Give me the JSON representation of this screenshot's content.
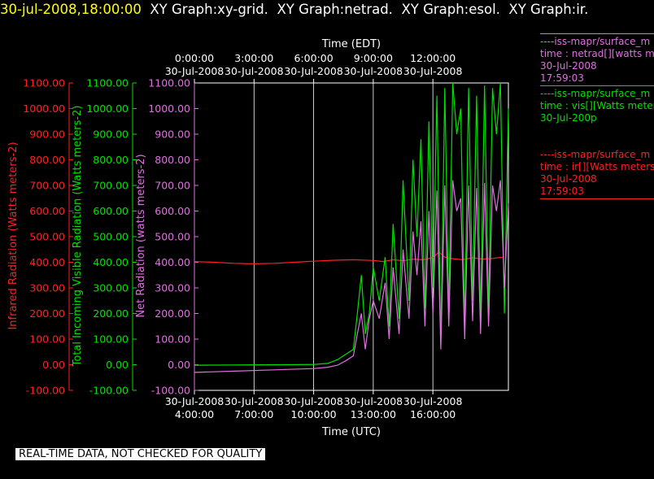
{
  "title": {
    "timestamp": "30-jul-2008,18:00:00",
    "graphs": [
      "XY Graph:xy-grid.",
      "XY Graph:netrad.",
      "XY Graph:esol.",
      "XY Graph:ir."
    ]
  },
  "colors": {
    "infrared": "#ff2020",
    "visible": "#00e000",
    "net": "#e070e0",
    "grid": "#ffffff"
  },
  "footer": "REAL-TIME DATA, NOT CHECKED FOR QUALITY",
  "legend": [
    {
      "header": "----iss-mapr/surface_m",
      "line1": "time : netrad[][watts m",
      "line2": "30-Jul-2008",
      "line3": "17:59:03",
      "color": "#e070e0"
    },
    {
      "header": "----iss-mapr/surface_m",
      "line1": "time : vis[][Watts meter",
      "line2": "30-Jul-200p",
      "line3": "",
      "color": "#00e000"
    },
    {
      "header": "----iss-mapr/surface_m",
      "line1": "time : ir[][Watts meters",
      "line2": "30-Jul-2008",
      "line3": "17:59:03",
      "color": "#ff2020"
    }
  ],
  "chart_data": {
    "type": "line",
    "x_unit": "hours UTC on 30-Jul-2008",
    "xlim": [
      4.0,
      19.8
    ],
    "ylim": [
      -100,
      1100
    ],
    "x_bottom": {
      "label": "Time (UTC)",
      "ticks": [
        4,
        7,
        10,
        13,
        16
      ],
      "tick_dates": [
        "30-Jul-2008",
        "30-Jul-2008",
        "30-Jul-2008",
        "30-Jul-2008",
        "30-Jul-2008"
      ],
      "tick_times": [
        "4:00:00",
        "7:00:00",
        "10:00:00",
        "13:00:00",
        "16:00:00"
      ]
    },
    "x_top": {
      "label": "Time (EDT)",
      "ticks": [
        4,
        7,
        10,
        13,
        16
      ],
      "tick_times": [
        "0:00:00",
        "3:00:00",
        "6:00:00",
        "9:00:00",
        "12:00:00"
      ],
      "tick_dates": [
        "30-Jul-2008",
        "30-Jul-2008",
        "30-Jul-2008",
        "30-Jul-2008",
        "30-Jul-2008"
      ]
    },
    "y_axes": [
      {
        "label": "Infrared Radiation (Watts meters-2)",
        "color": "#ff2020",
        "ticks": [
          "-100.00",
          "0.00",
          "100.00",
          "200.00",
          "300.00",
          "400.00",
          "500.00",
          "600.00",
          "700.00",
          "800.00",
          "900.00",
          "1000.00",
          "1100.00"
        ]
      },
      {
        "label": "Total Incoming Visible Radiation (Watts meters-2)",
        "color": "#00e000",
        "ticks": [
          "-100.00",
          "0.00",
          "100.00",
          "200.00",
          "300.00",
          "400.00",
          "500.00",
          "600.00",
          "700.00",
          "800.00",
          "900.00",
          "1000.00",
          "1100.00"
        ]
      },
      {
        "label": "Net Radiation (watts meters-2)",
        "color": "#e070e0",
        "ticks": [
          "-100.00",
          "0.00",
          "100.00",
          "200.00",
          "300.00",
          "400.00",
          "500.00",
          "600.00",
          "700.00",
          "800.00",
          "900.00",
          "1000.00",
          "1100.00"
        ]
      }
    ],
    "grid": true,
    "series": [
      {
        "name": "ir",
        "color": "#ff2020",
        "x": [
          4.0,
          5.0,
          6.0,
          7.0,
          8.0,
          9.0,
          10.0,
          11.0,
          12.0,
          13.0,
          13.5,
          14.0,
          14.5,
          15.0,
          15.5,
          16.0,
          16.3,
          16.6,
          17.0,
          17.5,
          18.0,
          18.5,
          19.0,
          19.5
        ],
        "y": [
          403,
          400,
          396,
          394,
          396,
          400,
          404,
          408,
          410,
          407,
          403,
          410,
          406,
          412,
          410,
          418,
          440,
          420,
          414,
          410,
          418,
          412,
          415,
          420
        ]
      },
      {
        "name": "vis",
        "color": "#00e000",
        "x": [
          4.0,
          6.0,
          8.0,
          10.0,
          10.7,
          11.2,
          11.6,
          12.0,
          12.2,
          12.4,
          12.6,
          12.8,
          13.0,
          13.3,
          13.6,
          13.8,
          14.0,
          14.3,
          14.5,
          14.8,
          15.0,
          15.2,
          15.4,
          15.6,
          15.8,
          16.0,
          16.2,
          16.4,
          16.6,
          16.8,
          17.0,
          17.2,
          17.4,
          17.6,
          17.8,
          18.0,
          18.2,
          18.4,
          18.6,
          18.8,
          19.0,
          19.2,
          19.4,
          19.6,
          19.8
        ],
        "y": [
          -2,
          -1,
          0,
          1,
          5,
          20,
          40,
          60,
          200,
          350,
          120,
          200,
          380,
          250,
          420,
          150,
          550,
          180,
          720,
          250,
          800,
          500,
          880,
          220,
          950,
          300,
          1050,
          80,
          1080,
          200,
          1100,
          900,
          1000,
          150,
          1080,
          250,
          1050,
          180,
          1090,
          200,
          1080,
          900,
          1100,
          200,
          1000
        ]
      },
      {
        "name": "netrad",
        "color": "#e070e0",
        "x": [
          4.0,
          6.0,
          8.0,
          10.0,
          10.7,
          11.2,
          11.6,
          12.0,
          12.2,
          12.4,
          12.6,
          12.8,
          13.0,
          13.3,
          13.6,
          13.8,
          14.0,
          14.3,
          14.5,
          14.8,
          15.0,
          15.2,
          15.4,
          15.6,
          15.8,
          16.0,
          16.2,
          16.4,
          16.6,
          16.8,
          17.0,
          17.2,
          17.4,
          17.6,
          17.8,
          18.0,
          18.2,
          18.4,
          18.6,
          18.8,
          19.0,
          19.2,
          19.4,
          19.6,
          19.8
        ],
        "y": [
          -30,
          -25,
          -20,
          -15,
          -10,
          -2,
          15,
          35,
          120,
          200,
          60,
          180,
          250,
          180,
          320,
          100,
          380,
          120,
          450,
          180,
          520,
          350,
          560,
          150,
          600,
          200,
          680,
          60,
          700,
          150,
          720,
          600,
          650,
          100,
          700,
          170,
          690,
          120,
          710,
          150,
          700,
          600,
          720,
          300,
          630
        ]
      }
    ]
  }
}
